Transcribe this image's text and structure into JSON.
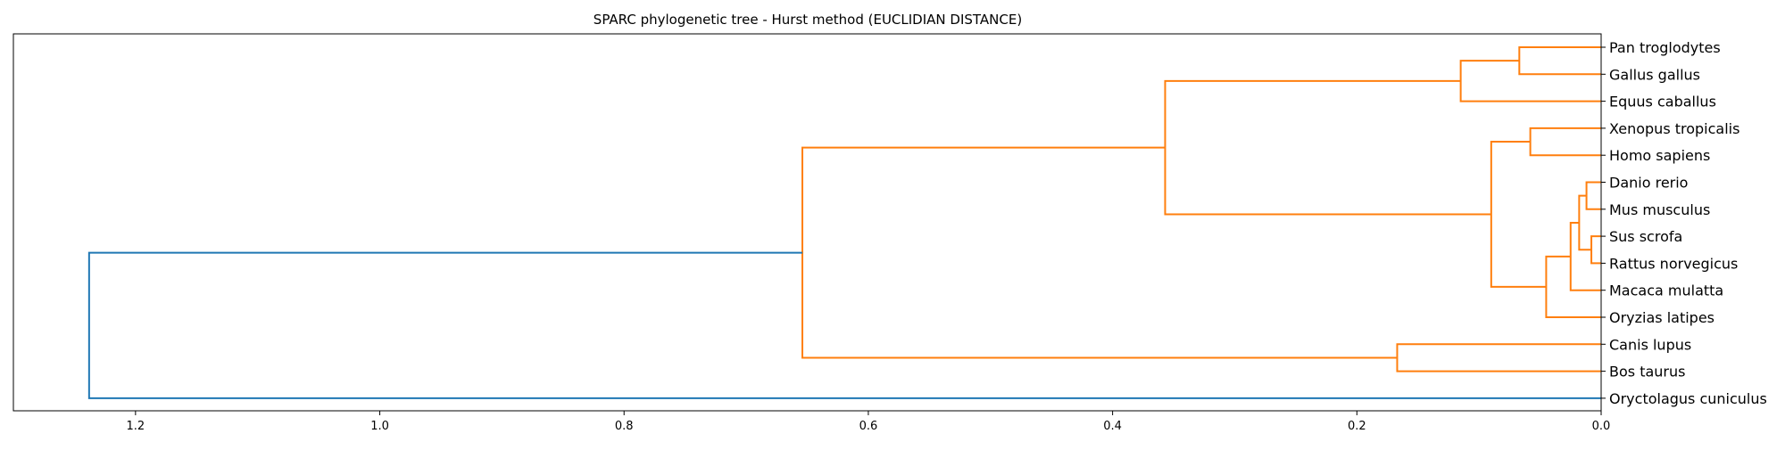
{
  "chart_data": {
    "type": "dendrogram",
    "orientation": "horizontal",
    "title": "SPARC phylogenetic tree - Hurst method (EUCLIDIAN DISTANCE)",
    "xlabel": "",
    "ylabel": "",
    "xlim": [
      1.3,
      0.0
    ],
    "x_ticks": [
      1.2,
      1.0,
      0.8,
      0.6,
      0.4,
      0.2,
      0.0
    ],
    "x_tick_labels": [
      "1.2",
      "1.0",
      "0.8",
      "0.6",
      "0.4",
      "0.2",
      "0.0"
    ],
    "grid": false,
    "leaves": [
      "Pan troglodytes",
      "Gallus gallus",
      "Equus caballus",
      "Xenopus tropicalis",
      "Homo sapiens",
      "Danio rerio",
      "Mus musculus",
      "Sus scrofa",
      "Rattus norvegicus",
      "Macaca mulatta",
      "Oryzias latipes",
      "Canis lupus",
      "Bos taurus",
      "Oryctolagus cuniculus"
    ],
    "colors": {
      "cluster": "#ff7f0e",
      "root": "#1f77b4"
    },
    "merges": [
      {
        "left": "Danio rerio",
        "right": "Mus musculus",
        "height": 0.012,
        "color": "cluster"
      },
      {
        "left": "Sus scrofa",
        "right": "Rattus norvegicus",
        "height": 0.008,
        "color": "cluster"
      },
      {
        "left": 0,
        "right": 1,
        "height": 0.018,
        "color": "cluster"
      },
      {
        "left": 2,
        "right": "Macaca mulatta",
        "height": 0.025,
        "color": "cluster"
      },
      {
        "left": 3,
        "right": "Oryzias latipes",
        "height": 0.045,
        "color": "cluster"
      },
      {
        "left": "Xenopus tropicalis",
        "right": "Homo sapiens",
        "height": 0.058,
        "color": "cluster"
      },
      {
        "left": 5,
        "right": 4,
        "height": 0.09,
        "color": "cluster"
      },
      {
        "left": "Pan troglodytes",
        "right": "Gallus gallus",
        "height": 0.067,
        "color": "cluster"
      },
      {
        "left": 7,
        "right": "Equus caballus",
        "height": 0.115,
        "color": "cluster"
      },
      {
        "left": 8,
        "right": 6,
        "height": 0.357,
        "color": "cluster"
      },
      {
        "left": "Canis lupus",
        "right": "Bos taurus",
        "height": 0.167,
        "color": "cluster"
      },
      {
        "left": 9,
        "right": 10,
        "height": 0.654,
        "color": "cluster"
      },
      {
        "left": 11,
        "right": "Oryctolagus cuniculus",
        "height": 1.238,
        "color": "root"
      }
    ]
  }
}
